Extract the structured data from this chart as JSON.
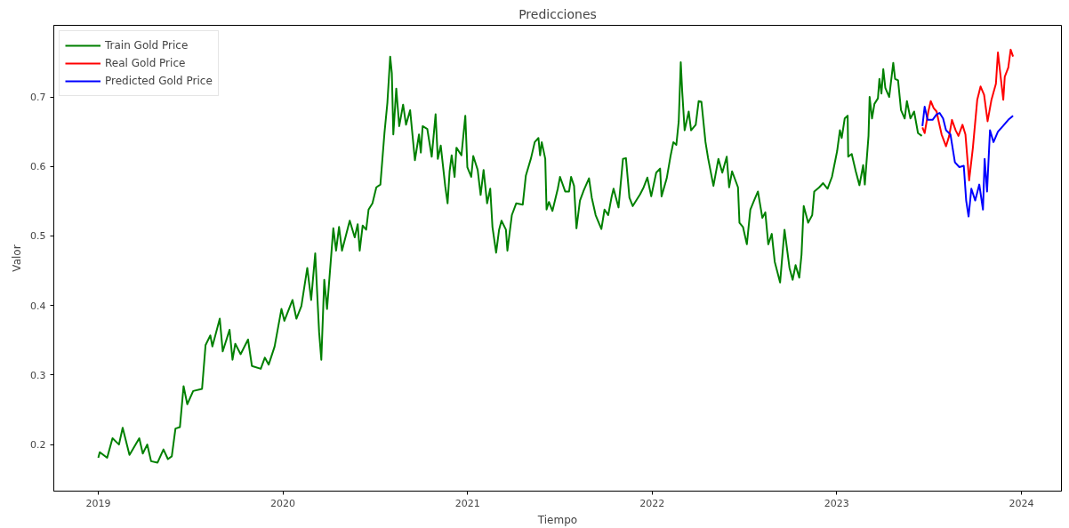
{
  "chart_data": {
    "type": "line",
    "title": "Predicciones",
    "xlabel": "Tiempo",
    "ylabel": "Valor",
    "xlim": [
      2018.759,
      2024.217
    ],
    "ylim": [
      0.133,
      0.803
    ],
    "xticks": [
      2019,
      2020,
      2021,
      2022,
      2023,
      2024
    ],
    "yticks": [
      0.2,
      0.3,
      0.4,
      0.5,
      0.6,
      0.7
    ],
    "grid": false,
    "legend": "top left",
    "series": [
      {
        "name": "Train Gold Price",
        "color": "#008000",
        "x": [
          2019.0,
          2019.008,
          2019.048,
          2019.077,
          2019.112,
          2019.132,
          2019.169,
          2019.222,
          2019.241,
          2019.265,
          2019.286,
          2019.321,
          2019.353,
          2019.377,
          2019.398,
          2019.418,
          2019.442,
          2019.462,
          2019.482,
          2019.514,
          2019.562,
          2019.581,
          2019.607,
          2019.618,
          2019.658,
          2019.674,
          2019.711,
          2019.727,
          2019.742,
          2019.771,
          2019.811,
          2019.832,
          2019.88,
          2019.902,
          2019.923,
          2019.955,
          2019.992,
          2020.008,
          2020.052,
          2020.073,
          2020.1,
          2020.132,
          2020.153,
          2020.175,
          2020.196,
          2020.208,
          2020.224,
          2020.239,
          2020.273,
          2020.288,
          2020.304,
          2020.32,
          2020.362,
          2020.389,
          2020.405,
          2020.416,
          2020.432,
          2020.451,
          2020.464,
          2020.485,
          2020.506,
          2020.528,
          2020.55,
          2020.566,
          2020.581,
          2020.59,
          2020.598,
          2020.614,
          2020.63,
          2020.651,
          2020.667,
          2020.689,
          2020.715,
          2020.737,
          2020.747,
          2020.757,
          2020.782,
          2020.806,
          2020.827,
          2020.839,
          2020.855,
          2020.879,
          2020.892,
          2020.903,
          2020.914,
          2020.93,
          2020.94,
          2020.967,
          2020.988,
          2020.999,
          2021.02,
          2021.031,
          2021.055,
          2021.071,
          2021.087,
          2021.106,
          2021.123,
          2021.135,
          2021.155,
          2021.171,
          2021.184,
          2021.208,
          2021.216,
          2021.24,
          2021.264,
          2021.299,
          2021.316,
          2021.344,
          2021.364,
          2021.384,
          2021.393,
          2021.402,
          2021.421,
          2021.428,
          2021.441,
          2021.46,
          2021.489,
          2021.501,
          2021.529,
          2021.55,
          2021.561,
          2021.577,
          2021.59,
          2021.609,
          2021.63,
          2021.658,
          2021.673,
          2021.694,
          2021.725,
          2021.742,
          2021.762,
          2021.781,
          2021.791,
          2021.818,
          2021.842,
          2021.858,
          2021.877,
          2021.895,
          2021.935,
          2021.954,
          2021.974,
          2021.995,
          2022.022,
          2022.043,
          2022.051,
          2022.079,
          2022.099,
          2022.115,
          2022.131,
          2022.144,
          2022.155,
          2022.163,
          2022.176,
          2022.198,
          2022.211,
          2022.236,
          2022.252,
          2022.267,
          2022.289,
          2022.303,
          2022.332,
          2022.359,
          2022.38,
          2022.404,
          2022.417,
          2022.433,
          2022.465,
          2022.473,
          2022.492,
          2022.513,
          2022.532,
          2022.552,
          2022.573,
          2022.597,
          2022.613,
          2022.629,
          2022.648,
          2022.664,
          2022.693,
          2022.717,
          2022.744,
          2022.761,
          2022.777,
          2022.797,
          2022.809,
          2022.821,
          2022.845,
          2022.867,
          2022.878,
          2022.905,
          2022.926,
          2022.95,
          2022.974,
          2023.002,
          2023.017,
          2023.027,
          2023.043,
          2023.059,
          2023.062,
          2023.081,
          2023.103,
          2023.123,
          2023.143,
          2023.152,
          2023.172,
          2023.178,
          2023.191,
          2023.204,
          2023.223,
          2023.231,
          2023.242,
          2023.252,
          2023.263,
          2023.284,
          2023.306,
          2023.316,
          2023.332,
          2023.348,
          2023.368,
          2023.38,
          2023.399,
          2023.419,
          2023.44,
          2023.461
        ],
        "values": [
          0.181,
          0.189,
          0.181,
          0.209,
          0.2,
          0.224,
          0.185,
          0.209,
          0.187,
          0.2,
          0.176,
          0.174,
          0.193,
          0.179,
          0.183,
          0.223,
          0.225,
          0.284,
          0.258,
          0.277,
          0.28,
          0.343,
          0.357,
          0.341,
          0.381,
          0.334,
          0.365,
          0.322,
          0.345,
          0.33,
          0.351,
          0.313,
          0.309,
          0.325,
          0.315,
          0.341,
          0.395,
          0.378,
          0.408,
          0.381,
          0.399,
          0.454,
          0.408,
          0.475,
          0.362,
          0.322,
          0.437,
          0.395,
          0.511,
          0.479,
          0.513,
          0.479,
          0.522,
          0.498,
          0.517,
          0.479,
          0.515,
          0.509,
          0.538,
          0.547,
          0.57,
          0.574,
          0.648,
          0.692,
          0.758,
          0.734,
          0.646,
          0.712,
          0.658,
          0.689,
          0.66,
          0.681,
          0.609,
          0.646,
          0.62,
          0.658,
          0.654,
          0.614,
          0.675,
          0.611,
          0.63,
          0.572,
          0.547,
          0.593,
          0.616,
          0.585,
          0.627,
          0.616,
          0.673,
          0.599,
          0.585,
          0.615,
          0.595,
          0.559,
          0.595,
          0.547,
          0.568,
          0.513,
          0.476,
          0.509,
          0.522,
          0.509,
          0.479,
          0.53,
          0.547,
          0.545,
          0.587,
          0.612,
          0.635,
          0.641,
          0.616,
          0.635,
          0.611,
          0.538,
          0.549,
          0.536,
          0.568,
          0.585,
          0.564,
          0.564,
          0.585,
          0.572,
          0.511,
          0.551,
          0.566,
          0.583,
          0.555,
          0.53,
          0.51,
          0.538,
          0.53,
          0.557,
          0.568,
          0.541,
          0.611,
          0.612,
          0.555,
          0.543,
          0.56,
          0.57,
          0.584,
          0.557,
          0.591,
          0.597,
          0.557,
          0.583,
          0.614,
          0.635,
          0.631,
          0.665,
          0.75,
          0.707,
          0.652,
          0.679,
          0.652,
          0.66,
          0.694,
          0.693,
          0.635,
          0.612,
          0.572,
          0.611,
          0.591,
          0.614,
          0.57,
          0.593,
          0.57,
          0.519,
          0.513,
          0.488,
          0.538,
          0.551,
          0.564,
          0.526,
          0.534,
          0.488,
          0.503,
          0.463,
          0.433,
          0.509,
          0.454,
          0.437,
          0.458,
          0.44,
          0.473,
          0.543,
          0.519,
          0.53,
          0.564,
          0.57,
          0.576,
          0.568,
          0.585,
          0.622,
          0.652,
          0.641,
          0.669,
          0.673,
          0.614,
          0.618,
          0.593,
          0.573,
          0.602,
          0.574,
          0.644,
          0.7,
          0.669,
          0.69,
          0.698,
          0.726,
          0.705,
          0.74,
          0.713,
          0.7,
          0.749,
          0.726,
          0.724,
          0.681,
          0.669,
          0.694,
          0.669,
          0.679,
          0.648,
          0.644
        ]
      },
      {
        "name": "Real Gold Price",
        "color": "#ff0000",
        "x": [
          2023.464,
          2023.476,
          2023.496,
          2023.509,
          2023.525,
          2023.541,
          2023.552,
          2023.568,
          2023.592,
          2023.609,
          2023.624,
          2023.644,
          2023.659,
          2023.681,
          2023.697,
          2023.717,
          2023.737,
          2023.761,
          2023.779,
          2023.798,
          2023.817,
          2023.838,
          2023.862,
          2023.873,
          2023.889,
          2023.902,
          2023.91,
          2023.929,
          2023.942,
          2023.955
        ],
        "values": [
          0.656,
          0.648,
          0.679,
          0.694,
          0.684,
          0.679,
          0.665,
          0.646,
          0.629,
          0.644,
          0.667,
          0.652,
          0.644,
          0.66,
          0.646,
          0.58,
          0.626,
          0.696,
          0.715,
          0.703,
          0.665,
          0.696,
          0.719,
          0.764,
          0.726,
          0.696,
          0.729,
          0.742,
          0.768,
          0.758
        ]
      },
      {
        "name": "Predicted Gold Price",
        "color": "#0000ff",
        "x": [
          2023.464,
          2023.476,
          2023.492,
          2023.519,
          2023.541,
          2023.557,
          2023.576,
          2023.592,
          2023.616,
          2023.64,
          2023.664,
          2023.688,
          2023.701,
          2023.714,
          2023.729,
          2023.75,
          2023.772,
          2023.792,
          2023.801,
          2023.814,
          2023.83,
          2023.849,
          2023.873,
          2023.9,
          2023.929,
          2023.955
        ],
        "values": [
          0.658,
          0.686,
          0.667,
          0.667,
          0.675,
          0.677,
          0.669,
          0.652,
          0.646,
          0.606,
          0.599,
          0.601,
          0.551,
          0.528,
          0.568,
          0.551,
          0.574,
          0.538,
          0.611,
          0.564,
          0.652,
          0.635,
          0.65,
          0.658,
          0.667,
          0.673
        ]
      }
    ]
  }
}
